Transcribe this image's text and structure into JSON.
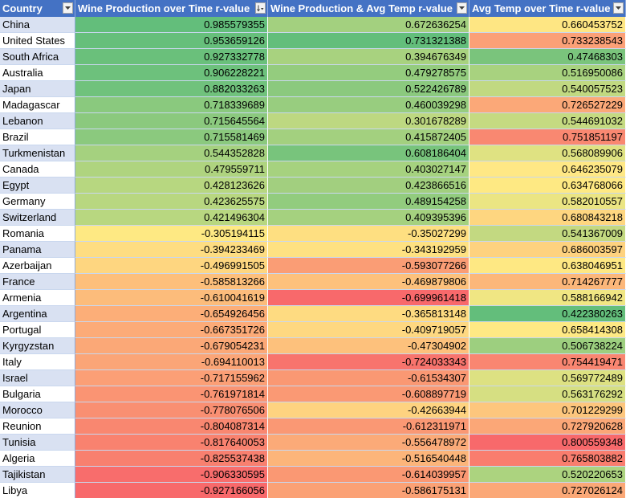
{
  "headers": [
    "Country",
    "Wine Production over Time r-value",
    "Wine Production & Avg Temp r-value",
    "Avg Temp over Time r-value"
  ],
  "rows": [
    {
      "country": "China",
      "v": [
        "0.985579355",
        "0.672636254",
        "0.660453752"
      ],
      "c": [
        "#63be7b",
        "#a3d07f",
        "#fee683"
      ]
    },
    {
      "country": "United States",
      "v": [
        "0.953659126",
        "0.731321388",
        "0.733238543"
      ],
      "c": [
        "#66bf7b",
        "#63be7b",
        "#fba077"
      ]
    },
    {
      "country": "South Africa",
      "v": [
        "0.927332778",
        "0.394676349",
        "0.47468303"
      ],
      "c": [
        "#6ac07b",
        "#a8d27f",
        "#7ac47c"
      ]
    },
    {
      "country": "Australia",
      "v": [
        "0.906228221",
        "0.479278575",
        "0.516950086"
      ],
      "c": [
        "#6dc17c",
        "#94cc7e",
        "#a8d27f"
      ]
    },
    {
      "country": "Japan",
      "v": [
        "0.882033263",
        "0.522426789",
        "0.540057523"
      ],
      "c": [
        "#70c27c",
        "#8bc97e",
        "#c1d981"
      ]
    },
    {
      "country": "Madagascar",
      "v": [
        "0.718339689",
        "0.460039298",
        "0.726527229"
      ],
      "c": [
        "#8ac97e",
        "#98cd7f",
        "#fba878"
      ]
    },
    {
      "country": "Lebanon",
      "v": [
        "0.715645564",
        "0.301678289",
        "0.544691032"
      ],
      "c": [
        "#8bc97e",
        "#bdd881",
        "#c5da81"
      ]
    },
    {
      "country": "Brazil",
      "v": [
        "0.715581469",
        "0.415872405",
        "0.751851197"
      ],
      "c": [
        "#8bc97e",
        "#a3d07f",
        "#f98871"
      ]
    },
    {
      "country": "Turkmenistan",
      "v": [
        "0.544352828",
        "0.608186404",
        "0.568089906"
      ],
      "c": [
        "#a5d17f",
        "#78c47c",
        "#dfe282"
      ]
    },
    {
      "country": "Canada",
      "v": [
        "0.479559711",
        "0.403027147",
        "0.646235079"
      ],
      "c": [
        "#afd47f",
        "#a6d27f",
        "#ffe885"
      ]
    },
    {
      "country": "Egypt",
      "v": [
        "0.428123626",
        "0.423866516",
        "0.634768066"
      ],
      "c": [
        "#b7d780",
        "#a2cf7f",
        "#fee983"
      ]
    },
    {
      "country": "Germany",
      "v": [
        "0.423625575",
        "0.489154258",
        "0.582010557"
      ],
      "c": [
        "#b8d780",
        "#92cc7e",
        "#ebe583"
      ]
    },
    {
      "country": "Switzerland",
      "v": [
        "0.421496304",
        "0.409395396",
        "0.680843218"
      ],
      "c": [
        "#b8d780",
        "#a5d17f",
        "#fed680"
      ]
    },
    {
      "country": "Romania",
      "v": [
        "-0.305194115",
        "-0.35027299",
        "0.541367009"
      ],
      "c": [
        "#fee983",
        "#fedf81",
        "#c3d981"
      ]
    },
    {
      "country": "Panama",
      "v": [
        "-0.394233469",
        "-0.343192959",
        "0.686003597"
      ],
      "c": [
        "#fedd82",
        "#fee182",
        "#fed27f"
      ]
    },
    {
      "country": "Azerbaijan",
      "v": [
        "-0.496991505",
        "-0.593077266",
        "0.638046951"
      ],
      "c": [
        "#fed680",
        "#fa9d75",
        "#fee883"
      ]
    },
    {
      "country": "France",
      "v": [
        "-0.585813266",
        "-0.469879806",
        "0.714267777"
      ],
      "c": [
        "#fdbf7b",
        "#fdc17c",
        "#fcb77a"
      ]
    },
    {
      "country": "Armenia",
      "v": [
        "-0.610041619",
        "-0.699961418",
        "0.588166942"
      ],
      "c": [
        "#fcbc7b",
        "#f8696b",
        "#f0e683"
      ]
    },
    {
      "country": "Argentina",
      "v": [
        "-0.654926456",
        "-0.365813148",
        "0.422380263"
      ],
      "c": [
        "#fcae78",
        "#fedb81",
        "#63be7b"
      ]
    },
    {
      "country": "Portugal",
      "v": [
        "-0.667351726",
        "-0.409719057",
        "0.658414308"
      ],
      "c": [
        "#fcab78",
        "#fed881",
        "#fee984"
      ]
    },
    {
      "country": "Kyrgyzstan",
      "v": [
        "-0.679054231",
        "-0.47304902",
        "0.506738224"
      ],
      "c": [
        "#fba877",
        "#fdc17c",
        "#9dcf7f"
      ]
    },
    {
      "country": "Italy",
      "v": [
        "-0.694110013",
        "-0.724033343",
        "0.754419471"
      ],
      "c": [
        "#fba577",
        "#f8746d",
        "#f98671"
      ]
    },
    {
      "country": "Israel",
      "v": [
        "-0.717155962",
        "-0.61534307",
        "0.569772489"
      ],
      "c": [
        "#fb9f76",
        "#fa9873",
        "#dde182"
      ]
    },
    {
      "country": "Bulgaria",
      "v": [
        "-0.761971814",
        "-0.608897719",
        "0.563176292"
      ],
      "c": [
        "#fa9473",
        "#fa9974",
        "#d6df82"
      ]
    },
    {
      "country": "Morocco",
      "v": [
        "-0.778076506",
        "-0.42663944",
        "0.701229299"
      ],
      "c": [
        "#f98f72",
        "#fed380",
        "#fdc67d"
      ]
    },
    {
      "country": "Reunion",
      "v": [
        "-0.804087314",
        "-0.612311971",
        "0.727920628"
      ],
      "c": [
        "#f98770",
        "#fa9874",
        "#fba777"
      ]
    },
    {
      "country": "Tunisia",
      "v": [
        "-0.817640053",
        "-0.556478972",
        "0.800559348"
      ],
      "c": [
        "#f9826f",
        "#fbaa78",
        "#f8696b"
      ]
    },
    {
      "country": "Algeria",
      "v": [
        "-0.825537438",
        "-0.516540448",
        "0.765803882"
      ],
      "c": [
        "#f8806f",
        "#fcb57a",
        "#f97d6e"
      ]
    },
    {
      "country": "Tajikistan",
      "v": [
        "-0.906330595",
        "-0.614039957",
        "0.520220653"
      ],
      "c": [
        "#f86d6c",
        "#fa9873",
        "#acd37f"
      ]
    },
    {
      "country": "Libya",
      "v": [
        "-0.927166056",
        "-0.586175131",
        "0.727026124"
      ],
      "c": [
        "#f8696b",
        "#fba175",
        "#fba877"
      ]
    }
  ],
  "colors": {
    "header_bg": "#4472c4",
    "header_text": "#ffffff",
    "band_light": "#d9e1f2"
  },
  "icons": {
    "filter": "filter-dropdown-icon",
    "sort_desc": "sort-descending-filter-icon"
  }
}
